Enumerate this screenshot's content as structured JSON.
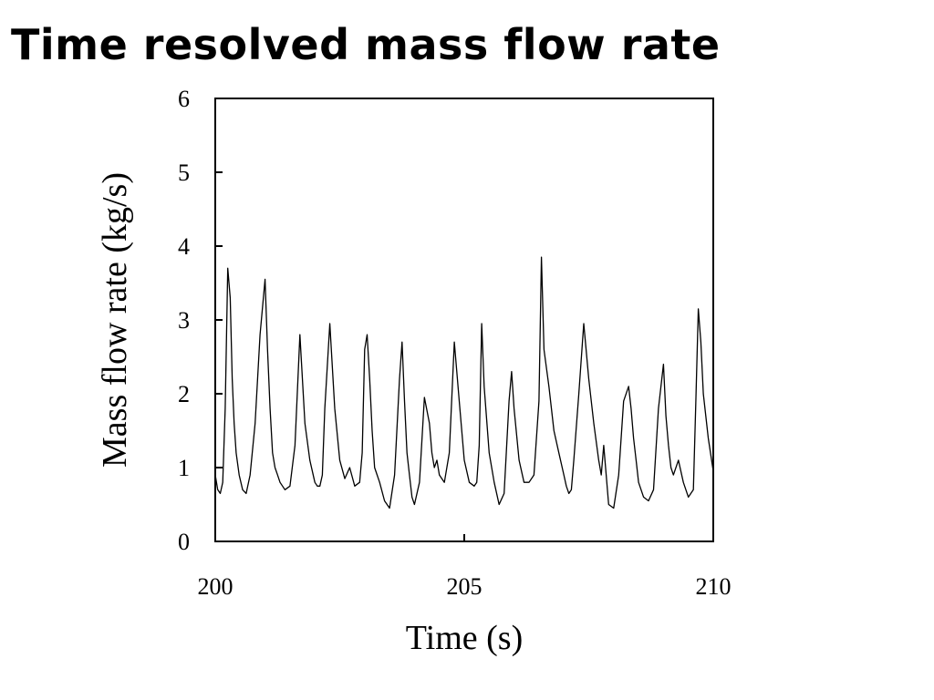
{
  "slide": {
    "title": "Time resolved mass flow rate"
  },
  "chart_data": {
    "type": "line",
    "xlabel": "Time (s)",
    "ylabel": "Mass flow rate (kg/s)",
    "xlim": [
      200,
      210
    ],
    "ylim": [
      0,
      6
    ],
    "xticks": [
      200,
      205,
      210
    ],
    "yticks": [
      0,
      1,
      2,
      3,
      4,
      5,
      6
    ],
    "grid": false,
    "series": [
      {
        "line_color": "#000000",
        "x": [
          200.0,
          200.05,
          200.1,
          200.15,
          200.2,
          200.25,
          200.3,
          200.34,
          200.38,
          200.42,
          200.48,
          200.55,
          200.62,
          200.7,
          200.8,
          200.9,
          201.0,
          201.05,
          201.1,
          201.15,
          201.2,
          201.25,
          201.3,
          201.4,
          201.5,
          201.6,
          201.7,
          201.8,
          201.9,
          202.0,
          202.05,
          202.1,
          202.15,
          202.2,
          202.3,
          202.4,
          202.5,
          202.6,
          202.7,
          202.8,
          202.9,
          202.95,
          203.0,
          203.05,
          203.1,
          203.15,
          203.2,
          203.3,
          203.4,
          203.5,
          203.6,
          203.7,
          203.75,
          203.8,
          203.85,
          203.9,
          203.95,
          204.0,
          204.1,
          204.2,
          204.3,
          204.35,
          204.4,
          204.45,
          204.5,
          204.6,
          204.7,
          204.8,
          204.9,
          205.0,
          205.1,
          205.2,
          205.25,
          205.3,
          205.35,
          205.4,
          205.5,
          205.6,
          205.7,
          205.8,
          205.9,
          205.95,
          206.0,
          206.1,
          206.2,
          206.3,
          206.4,
          206.5,
          206.55,
          206.6,
          206.7,
          206.8,
          206.9,
          207.0,
          207.05,
          207.1,
          207.15,
          207.2,
          207.3,
          207.4,
          207.5,
          207.6,
          207.7,
          207.75,
          207.8,
          207.85,
          207.9,
          208.0,
          208.1,
          208.2,
          208.3,
          208.35,
          208.4,
          208.45,
          208.5,
          208.6,
          208.7,
          208.8,
          208.9,
          209.0,
          209.05,
          209.1,
          209.15,
          209.2,
          209.3,
          209.4,
          209.5,
          209.6,
          209.65,
          209.7,
          209.75,
          209.8,
          209.9,
          210.0
        ],
        "y": [
          0.9,
          0.7,
          0.65,
          0.8,
          1.8,
          3.7,
          3.3,
          2.2,
          1.6,
          1.2,
          0.9,
          0.7,
          0.65,
          0.9,
          1.6,
          2.8,
          3.55,
          2.6,
          1.8,
          1.2,
          1.0,
          0.9,
          0.8,
          0.7,
          0.75,
          1.3,
          2.8,
          1.6,
          1.1,
          0.8,
          0.75,
          0.75,
          0.9,
          1.8,
          2.95,
          1.8,
          1.1,
          0.85,
          1.0,
          0.75,
          0.8,
          1.2,
          2.6,
          2.8,
          2.2,
          1.5,
          1.0,
          0.8,
          0.55,
          0.45,
          0.9,
          2.2,
          2.7,
          1.9,
          1.2,
          0.9,
          0.6,
          0.5,
          0.8,
          1.95,
          1.6,
          1.2,
          1.0,
          1.1,
          0.9,
          0.8,
          1.2,
          2.7,
          1.9,
          1.1,
          0.8,
          0.75,
          0.8,
          1.3,
          2.95,
          2.1,
          1.2,
          0.8,
          0.5,
          0.65,
          1.9,
          2.3,
          1.8,
          1.1,
          0.8,
          0.8,
          0.9,
          1.9,
          3.85,
          2.6,
          2.1,
          1.5,
          1.2,
          0.9,
          0.75,
          0.65,
          0.7,
          1.1,
          2.0,
          2.95,
          2.2,
          1.6,
          1.1,
          0.9,
          1.3,
          0.9,
          0.5,
          0.45,
          0.9,
          1.9,
          2.1,
          1.8,
          1.4,
          1.1,
          0.8,
          0.6,
          0.55,
          0.7,
          1.8,
          2.4,
          1.7,
          1.3,
          1.0,
          0.9,
          1.1,
          0.8,
          0.6,
          0.7,
          1.9,
          3.15,
          2.7,
          2.0,
          1.4,
          0.95
        ]
      }
    ]
  }
}
